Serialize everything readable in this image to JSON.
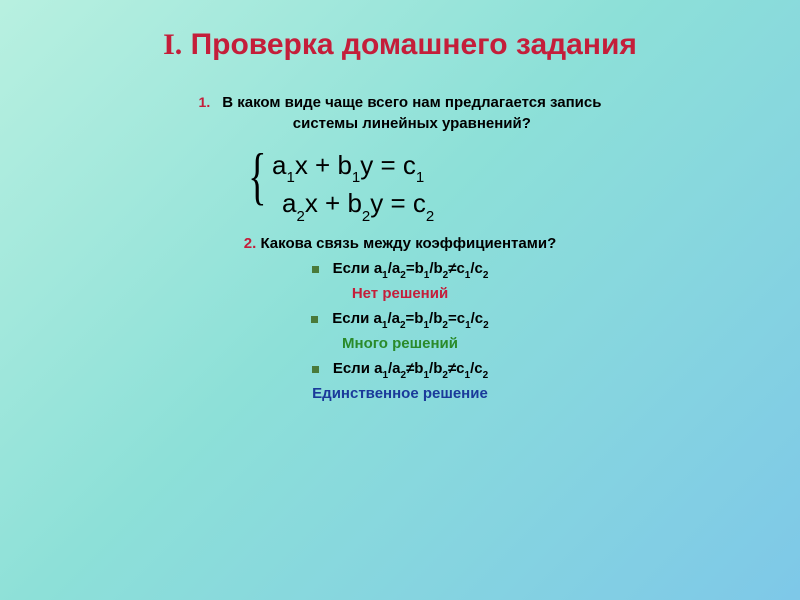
{
  "title": {
    "num": "I.",
    "text": "Проверка домашнего задания"
  },
  "q1": {
    "num": "1.",
    "line1": "В каком виде чаще всего нам предлагается запись",
    "line2": "системы линейных уравнений?"
  },
  "system": {
    "eq1": {
      "a": "а",
      "as": "1",
      "x": "х + b",
      "bs": "1",
      "y": "y = c",
      "cs": "1"
    },
    "eq2": {
      "a": "a",
      "as": "2",
      "x": "x + b",
      "bs": "2",
      "y": "y = c",
      "cs": "2"
    }
  },
  "q2": {
    "num": "2.",
    "text": " Какова связь между коэффициентами?"
  },
  "cases": [
    {
      "prefix": "Если а",
      "s1": "1",
      "p2": "/а",
      "s2": "2",
      "p3": "=b",
      "s3": "1",
      "p4": "/b",
      "s4": "2",
      "p5": "≠с",
      "s5": "1",
      "p6": "/с",
      "s6": "2",
      "result": "Нет решений",
      "result_color": "red"
    },
    {
      "prefix": "Если а",
      "s1": "1",
      "p2": "/а",
      "s2": "2",
      "p3": "=b",
      "s3": "1",
      "p4": "/b",
      "s4": "2",
      "p5": "=с",
      "s5": "1",
      "p6": "/с",
      "s6": "2",
      "result": "Много решений",
      "result_color": "green"
    },
    {
      "prefix": "Если а",
      "s1": "1",
      "p2": "/а",
      "s2": "2",
      "p3": "≠b",
      "s3": "1",
      "p4": "/b",
      "s4": "2",
      "p5": "≠с",
      "s5": "1",
      "p6": "/с",
      "s6": "2",
      "result": "Единственное решение",
      "result_color": "blue"
    }
  ],
  "colors": {
    "red": "#c41e3a",
    "green": "#2a8a2a",
    "blue": "#1a3a9a",
    "bullet": "#4a7a3a"
  }
}
